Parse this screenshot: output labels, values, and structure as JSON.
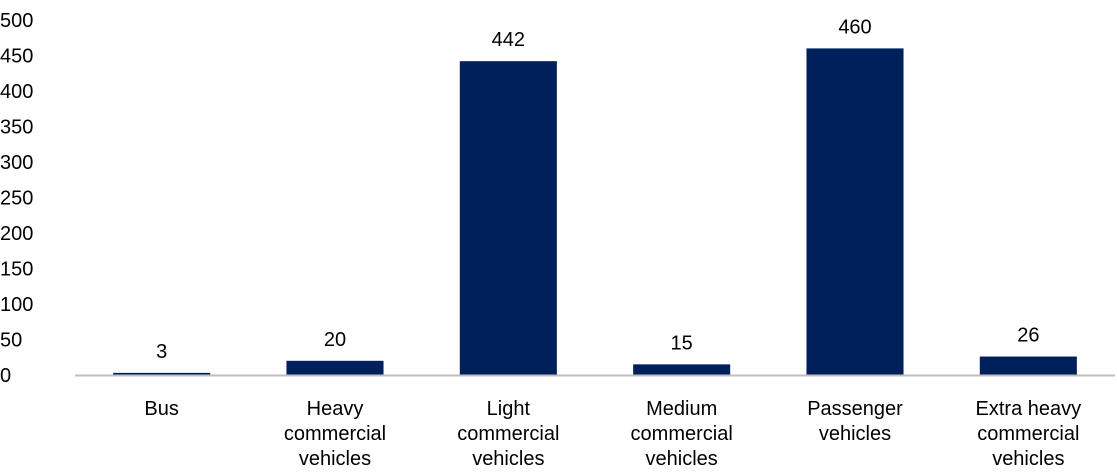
{
  "chart_data": {
    "type": "bar",
    "categories": [
      [
        "Bus"
      ],
      [
        "Heavy",
        "commercial",
        "vehicles"
      ],
      [
        "Light",
        "commercial",
        "vehicles"
      ],
      [
        "Medium",
        "commercial",
        "vehicles"
      ],
      [
        "Passenger",
        "vehicles"
      ],
      [
        "Extra heavy",
        "commercial",
        "vehicles"
      ]
    ],
    "values": [
      3,
      20,
      442,
      15,
      460,
      26
    ],
    "data_labels": [
      "3",
      "20",
      "442",
      "15",
      "460",
      "26"
    ],
    "ylim": [
      0,
      500
    ],
    "yticks": [
      "0",
      "50",
      "100",
      "150",
      "200",
      "250",
      "300",
      "350",
      "400",
      "450",
      "500"
    ],
    "grid": false,
    "legend": "none",
    "colors": {
      "bar": "#00205b",
      "axis": "#bfbfbf",
      "text": "#000000"
    }
  }
}
